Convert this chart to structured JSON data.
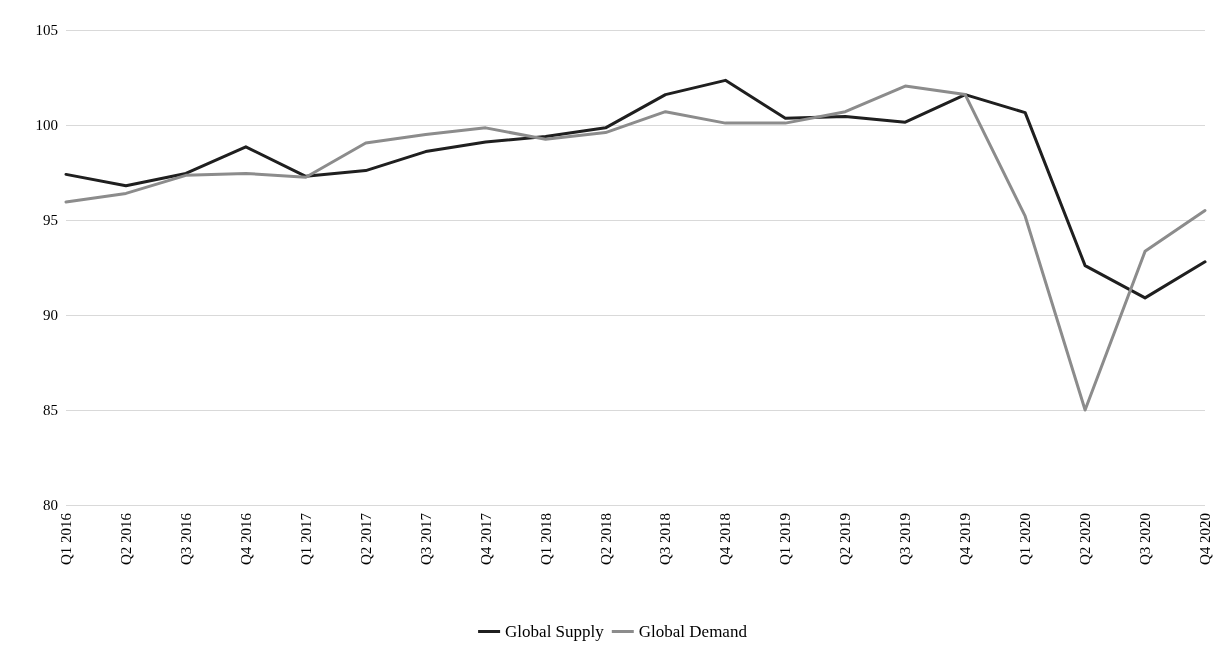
{
  "chart_data": {
    "type": "line",
    "categories": [
      "Q1 2016",
      "Q2 2016",
      "Q3 2016",
      "Q4 2016",
      "Q1 2017",
      "Q2 2017",
      "Q3 2017",
      "Q4 2017",
      "Q1 2018",
      "Q2 2018",
      "Q3 2018",
      "Q4 2018",
      "Q1 2019",
      "Q2 2019",
      "Q3 2019",
      "Q4 2019",
      "Q1 2020",
      "Q2 2020",
      "Q3 2020",
      "Q4 2020"
    ],
    "series": [
      {
        "name": "Global Supply",
        "color": "#1f1f1f",
        "values": [
          97.4,
          96.8,
          97.45,
          98.85,
          97.3,
          97.6,
          98.6,
          99.1,
          99.4,
          99.85,
          101.6,
          102.35,
          100.35,
          100.45,
          100.15,
          101.6,
          100.65,
          92.6,
          90.9,
          92.8
        ]
      },
      {
        "name": "Global Demand",
        "color": "#8c8c8c",
        "values": [
          95.95,
          96.4,
          97.35,
          97.45,
          97.25,
          99.05,
          99.5,
          99.85,
          99.25,
          99.6,
          100.7,
          100.1,
          100.1,
          100.7,
          102.05,
          101.6,
          95.2,
          85.0,
          93.35,
          95.5
        ]
      }
    ],
    "ylim": [
      80,
      105
    ],
    "yticks": [
      80,
      85,
      90,
      95,
      100,
      105
    ],
    "grid": "y",
    "legend": "bottom",
    "marker": "none",
    "line_style": "solid"
  }
}
